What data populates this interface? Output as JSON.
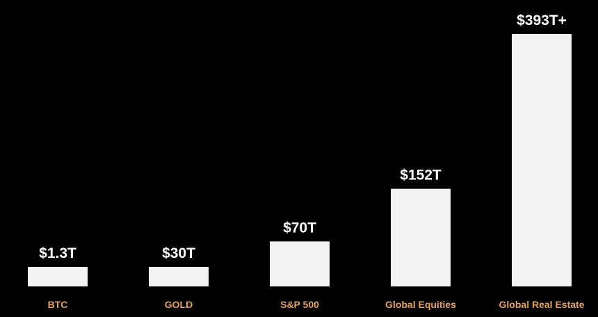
{
  "chart_data": {
    "type": "bar",
    "categories": [
      "BTC",
      "GOLD",
      "S&P 500",
      "Global Equities",
      "Global Real Estate"
    ],
    "values": [
      1.3,
      30,
      70,
      152,
      393
    ],
    "data_labels": [
      "$1.3T",
      "$30T",
      "$70T",
      "$152T",
      "$393T+"
    ],
    "title": "",
    "xlabel": "",
    "ylabel": "",
    "grid": false,
    "legend": "none"
  },
  "colors": {
    "background": "#000000",
    "bar": "#f2f2f2",
    "value_label": "#ffffff",
    "category_label": "#e8a44f"
  }
}
